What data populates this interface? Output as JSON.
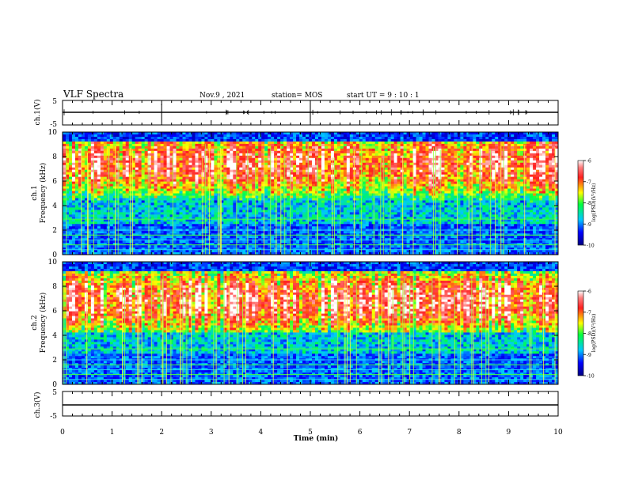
{
  "header": {
    "title": "VLF Spectra",
    "date": "Nov.9 , 2021",
    "station": "station= MOS",
    "start": "start  UT =   9 : 10 : 1"
  },
  "chart_data": [
    {
      "type": "line",
      "ylabel": "ch.1(V)",
      "ylim": [
        -5,
        5
      ],
      "yticks": [
        "5",
        "-5"
      ],
      "x_range": [
        0,
        10
      ]
    },
    {
      "type": "heatmap",
      "ylabel": "ch.1\nFrequency  (kHz)",
      "ylabel_lines": [
        "ch.1",
        "Frequency  (kHz)"
      ],
      "ylim": [
        0,
        10
      ],
      "yticks": [
        "0",
        "2",
        "4",
        "6",
        "8",
        "10"
      ],
      "x_range": [
        0,
        10
      ],
      "colorbar": {
        "label": "log(PSD)(V²/Hz)",
        "range": [
          -10,
          -6
        ],
        "ticks": [
          "-6",
          "-7",
          "-8",
          "-9",
          "-10"
        ]
      }
    },
    {
      "type": "heatmap",
      "ylabel": "ch.2\nFrequency  (kHz)",
      "ylabel_lines": [
        "ch.2",
        "Frequency  (kHz)"
      ],
      "ylim": [
        0,
        10
      ],
      "yticks": [
        "0",
        "2",
        "4",
        "6",
        "8",
        "10"
      ],
      "x_range": [
        0,
        10
      ],
      "colorbar": {
        "label": "log(PSD)(V²/Hz)",
        "range": [
          -10,
          -6
        ],
        "ticks": [
          "-6",
          "-7",
          "-8",
          "-9",
          "-10"
        ]
      }
    },
    {
      "type": "line",
      "ylabel": "ch.3(V)",
      "ylim": [
        -5,
        5
      ],
      "yticks": [
        "5",
        "-5"
      ],
      "x_range": [
        0,
        10
      ],
      "xlabel": "Time  (min)",
      "xticks": [
        "0",
        "1",
        "2",
        "3",
        "4",
        "5",
        "6",
        "7",
        "8",
        "9",
        "10"
      ]
    }
  ]
}
